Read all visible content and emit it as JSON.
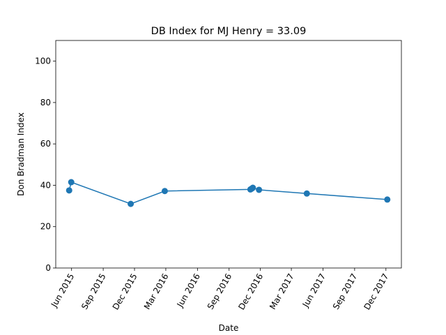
{
  "chart_data": {
    "type": "line",
    "title": "DB Index for MJ Henry = 33.09",
    "xlabel": "Date",
    "ylabel": "Don Bradman Index",
    "xlim": [
      "2015-04-16",
      "2018-01-15"
    ],
    "ylim": [
      0,
      110
    ],
    "grid": false,
    "x_ticks": [
      {
        "date": "2015-06-01",
        "label": "Jun 2015"
      },
      {
        "date": "2015-09-01",
        "label": "Sep 2015"
      },
      {
        "date": "2015-12-01",
        "label": "Dec 2015"
      },
      {
        "date": "2016-03-01",
        "label": "Mar 2016"
      },
      {
        "date": "2016-06-01",
        "label": "Jun 2016"
      },
      {
        "date": "2016-09-01",
        "label": "Sep 2016"
      },
      {
        "date": "2016-12-01",
        "label": "Dec 2016"
      },
      {
        "date": "2017-03-01",
        "label": "Mar 2017"
      },
      {
        "date": "2017-06-01",
        "label": "Jun 2017"
      },
      {
        "date": "2017-09-01",
        "label": "Sep 2017"
      },
      {
        "date": "2017-12-01",
        "label": "Dec 2017"
      }
    ],
    "y_ticks": [
      0,
      20,
      40,
      60,
      80,
      100
    ],
    "series": [
      {
        "color": "#1f77b4",
        "x": [
          "2015-05-25",
          "2015-05-31",
          "2015-11-20",
          "2016-02-27",
          "2016-11-02",
          "2016-11-06",
          "2016-11-09",
          "2016-11-27",
          "2017-04-15",
          "2017-12-05"
        ],
        "y": [
          37.5,
          41.5,
          31.0,
          37.2,
          38.0,
          38.4,
          38.8,
          37.8,
          36.0,
          33.09
        ]
      }
    ]
  }
}
